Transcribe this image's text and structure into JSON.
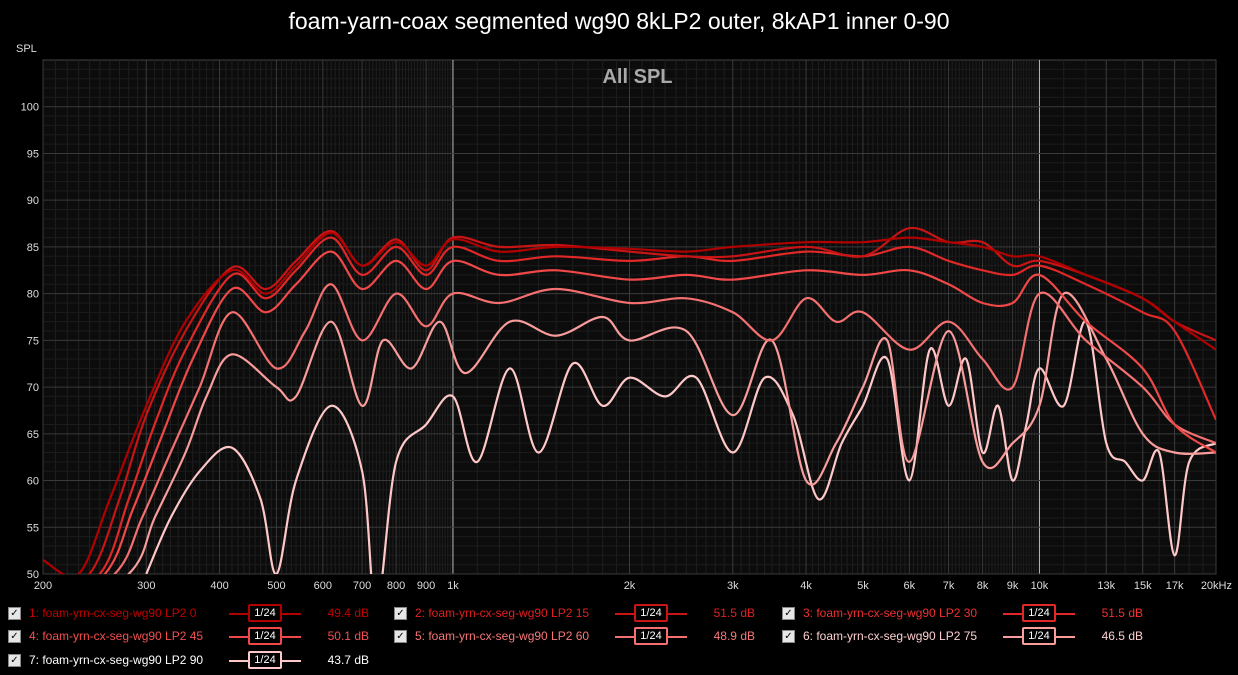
{
  "title": "foam-yarn-coax segmented wg90 8kLP2 outer, 8kAP1 inner 0-90",
  "chart_data": {
    "type": "line",
    "title": "foam-yarn-coax segmented wg90 8kLP2 outer, 8kAP1 inner 0-90",
    "subtitle": "All SPL",
    "ylabel": "SPL",
    "xlabel": "",
    "xscale": "log",
    "xlim": [
      200,
      20000
    ],
    "ylim": [
      50,
      105
    ],
    "yticks": [
      "50",
      "55",
      "60",
      "65",
      "70",
      "75",
      "80",
      "85",
      "90",
      "95",
      "100"
    ],
    "xticks": [
      {
        "v": 200,
        "l": "200"
      },
      {
        "v": 300,
        "l": "300"
      },
      {
        "v": 400,
        "l": "400"
      },
      {
        "v": 500,
        "l": "500"
      },
      {
        "v": 600,
        "l": "600"
      },
      {
        "v": 700,
        "l": "700"
      },
      {
        "v": 800,
        "l": "800"
      },
      {
        "v": 900,
        "l": "900"
      },
      {
        "v": 1000,
        "l": "1k"
      },
      {
        "v": 2000,
        "l": "2k"
      },
      {
        "v": 3000,
        "l": "3k"
      },
      {
        "v": 4000,
        "l": "4k"
      },
      {
        "v": 5000,
        "l": "5k"
      },
      {
        "v": 6000,
        "l": "6k"
      },
      {
        "v": 7000,
        "l": "7k"
      },
      {
        "v": 8000,
        "l": "8k"
      },
      {
        "v": 9000,
        "l": "9k"
      },
      {
        "v": 10000,
        "l": "10k"
      },
      {
        "v": 13000,
        "l": "13k"
      },
      {
        "v": 15000,
        "l": "15k"
      },
      {
        "v": 17000,
        "l": "17k"
      },
      {
        "v": 20000,
        "l": "20kHz"
      }
    ],
    "grid": true,
    "legend_placement": "bottom",
    "series": [
      {
        "name": "1: foam-yrn-cx-seg-wg90 LP2 0",
        "color": "#b00000",
        "smoothing": "1/24",
        "level": "49.4 dB",
        "x": [
          200,
          230,
          260,
          300,
          350,
          420,
          480,
          540,
          620,
          700,
          800,
          900,
          1000,
          1200,
          1500,
          2000,
          2500,
          3000,
          4000,
          5000,
          6000,
          7000,
          8000,
          9000,
          10000,
          12000,
          15000,
          17000,
          20000
        ],
        "y": [
          51.5,
          50,
          58,
          68,
          77,
          82.5,
          80,
          83,
          86.5,
          83,
          85.5,
          83,
          85.8,
          84.5,
          85,
          84.8,
          84.5,
          85,
          85.5,
          85.5,
          86,
          85.5,
          85,
          84,
          84,
          82,
          79.5,
          77,
          74
        ]
      },
      {
        "name": "2: foam-yrn-cx-seg-wg90 LP2 15",
        "color": "#c81414",
        "smoothing": "1/24",
        "level": "51.5 dB",
        "x": [
          200,
          240,
          270,
          300,
          350,
          420,
          480,
          540,
          620,
          700,
          800,
          900,
          1000,
          1200,
          1500,
          2000,
          2500,
          3000,
          4000,
          5000,
          6000,
          7000,
          8000,
          9000,
          10000,
          12000,
          15000,
          17000,
          20000
        ],
        "y": [
          48,
          50,
          58,
          67,
          76,
          82.8,
          80.5,
          83.5,
          86.7,
          83,
          85.8,
          82.5,
          86,
          85,
          85.2,
          84.5,
          84,
          84,
          85,
          84,
          87,
          85.5,
          85.5,
          83,
          83.5,
          82,
          79.5,
          77,
          75
        ]
      },
      {
        "name": "3: foam-yrn-cx-seg-wg90 LP2 30",
        "color": "#e02828",
        "smoothing": "1/24",
        "level": "51.5 dB",
        "x": [
          200,
          250,
          280,
          310,
          350,
          420,
          480,
          540,
          620,
          700,
          800,
          900,
          1000,
          1200,
          1500,
          2000,
          2500,
          3000,
          4000,
          5000,
          6000,
          7000,
          8000,
          9000,
          10000,
          12000,
          15000,
          17000,
          20000
        ],
        "y": [
          47,
          50,
          58,
          66,
          74,
          82,
          79.5,
          82.5,
          86,
          82,
          85,
          82,
          85,
          83.5,
          84,
          83.5,
          84,
          83.5,
          84.5,
          84,
          85,
          83.5,
          82.5,
          82,
          83,
          81,
          78,
          76,
          66.5
        ]
      },
      {
        "name": "4: foam-yrn-cx-seg-wg90 LP2 45",
        "color": "#f04848",
        "smoothing": "1/24",
        "level": "50.1 dB",
        "x": [
          200,
          255,
          285,
          320,
          360,
          420,
          480,
          540,
          620,
          700,
          800,
          900,
          1000,
          1200,
          1500,
          2000,
          2500,
          3000,
          4000,
          5000,
          6000,
          7000,
          8000,
          9000,
          10000,
          12000,
          15000,
          17000,
          20000
        ],
        "y": [
          46,
          50,
          57,
          65,
          73,
          80.5,
          78,
          81,
          84.5,
          80.5,
          83.5,
          80.5,
          83.5,
          82,
          82.5,
          81.5,
          82,
          81.5,
          82.5,
          82,
          82.5,
          81,
          79,
          79,
          82,
          77,
          72,
          66,
          63
        ]
      },
      {
        "name": "5: foam-yrn-cx-seg-wg90 LP2 60",
        "color": "#f47070",
        "smoothing": "1/24",
        "level": "48.9 dB",
        "x": [
          200,
          265,
          295,
          330,
          370,
          420,
          500,
          560,
          620,
          700,
          800,
          900,
          1000,
          1200,
          1500,
          2000,
          2500,
          3000,
          3500,
          4000,
          4500,
          5000,
          6000,
          7000,
          8000,
          9000,
          10000,
          12000,
          15000,
          17000,
          20000
        ],
        "y": [
          45,
          50,
          56,
          63,
          70,
          78,
          72,
          76,
          81,
          75,
          80,
          76.5,
          80,
          79,
          80.5,
          79,
          79.5,
          78,
          75,
          79.5,
          77,
          78,
          74,
          77,
          73,
          70,
          80,
          75,
          70,
          66,
          64
        ]
      },
      {
        "name": "6: foam-yrn-cx-seg-wg90 LP2 75",
        "color": "#f89c9c",
        "smoothing": "1/24",
        "level": "46.5 dB",
        "x": [
          200,
          280,
          310,
          350,
          380,
          420,
          500,
          540,
          620,
          700,
          760,
          850,
          950,
          1050,
          1250,
          1500,
          1800,
          2000,
          2500,
          3000,
          3500,
          4000,
          4500,
          5000,
          5500,
          6000,
          7000,
          8000,
          9000,
          10000,
          11000,
          13000,
          15000,
          17000,
          20000
        ],
        "y": [
          44,
          50,
          56,
          63,
          69,
          73.5,
          70,
          69,
          77,
          68,
          75,
          72,
          77,
          71.5,
          77,
          75.5,
          77.5,
          75,
          76,
          67,
          75,
          60,
          64,
          70,
          75,
          62,
          76,
          62,
          64,
          68,
          80,
          73,
          65,
          63,
          63
        ]
      },
      {
        "name": "7: foam-yrn-cx-seg-wg90 LP2 90",
        "color": "#ffc8c8",
        "smoothing": "1/24",
        "level": "43.7 dB",
        "x": [
          300,
          330,
          370,
          420,
          470,
          500,
          540,
          620,
          700,
          740,
          800,
          900,
          1000,
          1100,
          1250,
          1400,
          1600,
          1800,
          2000,
          2300,
          2600,
          3000,
          3400,
          3800,
          4200,
          4600,
          5000,
          5500,
          6000,
          6500,
          7000,
          7500,
          8000,
          8500,
          9000,
          9500,
          10000,
          11000,
          12000,
          13000,
          14000,
          15000,
          16000,
          17000,
          18000,
          20000
        ],
        "y": [
          50,
          56,
          61,
          63.5,
          58,
          50,
          60,
          68,
          61,
          46,
          62,
          66,
          69,
          62,
          72,
          63,
          72.5,
          68,
          71,
          69,
          71,
          63,
          71,
          67,
          58,
          64,
          68,
          73,
          60,
          74,
          68,
          73,
          63,
          68,
          60,
          66,
          72,
          68,
          77,
          64,
          62,
          60,
          63,
          52,
          62,
          64
        ]
      }
    ]
  },
  "legend": [
    {
      "label": "1: foam-yrn-cx-seg-wg90 LP2 0",
      "level": "49.4 dB",
      "smoothing_num": "1",
      "smoothing_den": "24",
      "color": "#b00000",
      "text_color": "#c00000"
    },
    {
      "label": "2: foam-yrn-cx-seg-wg90 LP2 15",
      "level": "51.5 dB",
      "smoothing_num": "1",
      "smoothing_den": "24",
      "color": "#c81414",
      "text_color": "#e02020"
    },
    {
      "label": "3: foam-yrn-cx-seg-wg90 LP2 30",
      "level": "51.5 dB",
      "smoothing_num": "1",
      "smoothing_den": "24",
      "color": "#e02828",
      "text_color": "#f03030"
    },
    {
      "label": "4: foam-yrn-cx-seg-wg90 LP2 45",
      "level": "50.1 dB",
      "smoothing_num": "1",
      "smoothing_den": "24",
      "color": "#f04848",
      "text_color": "#f45050"
    },
    {
      "label": "5: foam-yrn-cx-seg-wg90 LP2 60",
      "level": "48.9 dB",
      "smoothing_num": "1",
      "smoothing_den": "24",
      "color": "#f47070",
      "text_color": "#f87878"
    },
    {
      "label": "6: foam-yrn-cx-seg-wg90 LP2 75",
      "level": "46.5 dB",
      "smoothing_num": "1",
      "smoothing_den": "24",
      "color": "#f89c9c",
      "text_color": "#fcd0d0"
    },
    {
      "label": "7: foam-yrn-cx-seg-wg90 LP2 90",
      "level": "43.7 dB",
      "smoothing_num": "1",
      "smoothing_den": "24",
      "color": "#ffc8c8",
      "text_color": "#ffffff"
    }
  ]
}
